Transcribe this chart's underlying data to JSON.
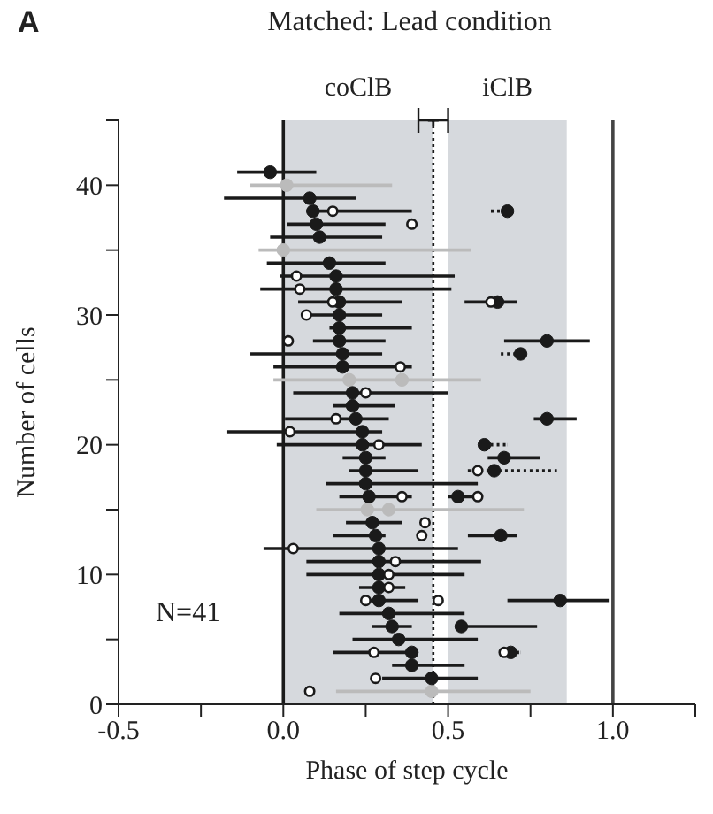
{
  "chart_data": {
    "type": "scatter",
    "title": "Matched: Lead condition",
    "xlabel": "Phase of step cycle",
    "ylabel": "Number of cells",
    "annotations": [
      "A",
      "N=41"
    ],
    "xlim": [
      -0.5,
      1.25
    ],
    "xticks": [
      {
        "value": -0.5,
        "label": "-0.5"
      },
      {
        "value": -0.25,
        "label": null
      },
      {
        "value": 0,
        "label": "0.0"
      },
      {
        "value": 0.25,
        "label": null
      },
      {
        "value": 0.5,
        "label": "0.5"
      },
      {
        "value": 0.75,
        "label": null
      },
      {
        "value": 1,
        "label": "1.0"
      },
      {
        "value": 1.25,
        "label": null
      }
    ],
    "ylim": [
      0,
      45
    ],
    "yticks": [
      0,
      {
        "value": 5,
        "label": null
      },
      10,
      {
        "value": 15,
        "label": null
      },
      20,
      {
        "value": 25,
        "label": null
      },
      30,
      {
        "value": 35,
        "label": null
      },
      40,
      {
        "value": 45,
        "label": null
      }
    ],
    "marker": "circle",
    "bands": [
      {
        "axis": "x",
        "from": 0,
        "to": 0.455,
        "label": "coClB",
        "color": "#d6d9dd"
      },
      {
        "axis": "x",
        "from": 0.5,
        "to": 0.86,
        "label": "iClB",
        "color": "#d6d9dd"
      }
    ],
    "ref_lines": [
      {
        "axis": "x",
        "value": 0,
        "color": "#1a1a1a",
        "line_style": "solid"
      },
      {
        "axis": "x",
        "value": 0.455,
        "color": "#1a1a1a",
        "line_style": "dotted"
      },
      {
        "axis": "x",
        "value": 1,
        "color": "#444444",
        "line_style": "solid"
      }
    ],
    "series": [
      {
        "color": "#bbbbbb",
        "x": [
          0.01,
          0.0,
          0.2,
          0.36,
          0.255,
          0.32,
          0.45
        ],
        "values": [
          40,
          35,
          25,
          25,
          15,
          15,
          1
        ],
        "xerrors": [
          [
            -0.1,
            0.33
          ],
          [
            -0.075,
            0.57
          ],
          [
            -0.03,
            0.6
          ],
          null,
          [
            0.1,
            0.73
          ],
          null,
          [
            0.16,
            0.75
          ]
        ]
      },
      {
        "color": "#1a1a1a",
        "x": [
          -0.04,
          0.08,
          0.09,
          0.1,
          0.11,
          0.14,
          0.16,
          0.16,
          0.17,
          0.17,
          0.17,
          0.17,
          0.18,
          0.18,
          0.21,
          0.21,
          0.22,
          0.24,
          0.24,
          0.25,
          0.25,
          0.25,
          0.26,
          0.27,
          0.28,
          0.29,
          0.29,
          0.29,
          0.29,
          0.29,
          0.32,
          0.33,
          0.35,
          0.39,
          0.39,
          0.45,
          0.65,
          0.8,
          0.8,
          0.67,
          0.53,
          0.66,
          0.84,
          0.54
        ],
        "values": [
          41,
          39,
          38,
          37,
          36,
          34,
          33,
          32,
          31,
          30,
          29,
          28,
          27,
          26,
          24,
          23,
          22,
          21,
          20,
          19,
          18,
          17,
          16,
          14,
          13,
          12,
          11,
          10,
          9,
          8,
          7,
          6,
          5,
          4,
          3,
          2,
          31,
          28,
          22,
          19,
          16,
          13,
          8,
          6
        ],
        "xerrors": [
          [
            -0.14,
            0.1
          ],
          [
            -0.18,
            0.22
          ],
          [
            0.07,
            0.39
          ],
          [
            0.01,
            0.31
          ],
          [
            -0.04,
            0.3
          ],
          [
            -0.05,
            0.31
          ],
          [
            -0.01,
            0.52
          ],
          [
            -0.07,
            0.51
          ],
          [
            0.045,
            0.36
          ],
          [
            0.07,
            0.3
          ],
          [
            0.14,
            0.39
          ],
          [
            0.09,
            0.31
          ],
          [
            -0.1,
            0.3
          ],
          [
            -0.03,
            0.39
          ],
          [
            0.03,
            0.5
          ],
          [
            0.15,
            0.34
          ],
          [
            0.005,
            0.32
          ],
          [
            -0.17,
            0.3
          ],
          [
            -0.02,
            0.42
          ],
          [
            0.18,
            0.31
          ],
          [
            0.2,
            0.41
          ],
          [
            0.13,
            0.59
          ],
          [
            0.17,
            0.39
          ],
          [
            0.19,
            0.36
          ],
          [
            0.15,
            0.31
          ],
          [
            -0.06,
            0.53
          ],
          [
            0.07,
            0.6
          ],
          [
            0.07,
            0.55
          ],
          [
            0.23,
            0.37
          ],
          [
            0.24,
            0.41
          ],
          [
            0.17,
            0.55
          ],
          [
            0.27,
            0.39
          ],
          [
            0.21,
            0.59
          ],
          [
            0.15,
            0.4
          ],
          [
            0.33,
            0.55
          ],
          [
            0.3,
            0.59
          ],
          [
            0.55,
            0.71
          ],
          [
            0.67,
            0.93
          ],
          [
            0.76,
            0.89
          ],
          [
            0.62,
            0.78
          ],
          [
            0.5,
            0.59
          ],
          [
            0.56,
            0.71
          ],
          [
            0.68,
            0.99
          ],
          [
            0.54,
            0.77
          ]
        ]
      },
      {
        "color": "#1a1a1a",
        "line_style": "dotted",
        "x": [
          0.68,
          0.72,
          0.61,
          0.64,
          0.69
        ],
        "values": [
          38,
          27,
          20,
          18,
          4
        ],
        "xerrors": [
          [
            0.63,
            0.68
          ],
          [
            0.66,
            0.72
          ],
          [
            0.61,
            0.68
          ],
          [
            0.56,
            0.83
          ],
          [
            0.67,
            0.72
          ]
        ]
      },
      {
        "color": "#ffffff",
        "x": [
          0.15,
          0.39,
          0.04,
          0.05,
          0.15,
          0.63,
          0.07,
          0.015,
          0.355,
          0.25,
          0.16,
          0.02,
          0.29,
          0.59,
          0.36,
          0.59,
          0.43,
          0.42,
          0.03,
          0.34,
          0.32,
          0.32,
          0.25,
          0.47,
          0.275,
          0.67,
          0.28,
          0.08
        ],
        "values": [
          38,
          37,
          33,
          32,
          31,
          31,
          30,
          28,
          26,
          24,
          22,
          21,
          20,
          18,
          16,
          16,
          14,
          13,
          12,
          11,
          10,
          9,
          8,
          8,
          4,
          4,
          2,
          1
        ]
      },
      {
        "color": "#1a1a1a",
        "marker": "cross",
        "x": [
          0.455
        ],
        "values": [
          45
        ],
        "xerrors": [
          [
            0.41,
            0.5
          ]
        ]
      }
    ]
  }
}
